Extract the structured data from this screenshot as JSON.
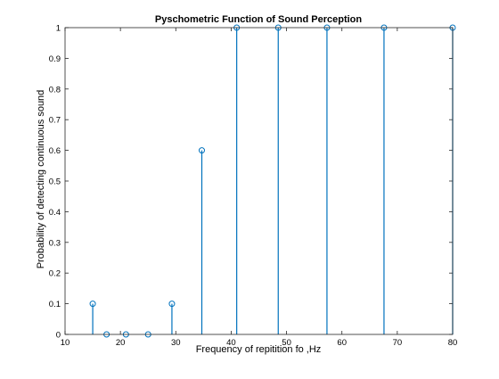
{
  "chart_data": {
    "type": "stem",
    "title": "Pyschometric Function of Sound Perception",
    "xlabel": "Frequency of repitition fo ,Hz",
    "ylabel": "Probability of detecting continuous sound",
    "xlim": [
      10,
      80
    ],
    "ylim": [
      0,
      1
    ],
    "xticks": [
      10,
      20,
      30,
      40,
      50,
      60,
      70,
      80
    ],
    "yticks": [
      0,
      0.1,
      0.2,
      0.3,
      0.4,
      0.5,
      0.6,
      0.7,
      0.8,
      0.9,
      1
    ],
    "xtick_labels": [
      "10",
      "20",
      "30",
      "40",
      "50",
      "60",
      "70",
      "80"
    ],
    "ytick_labels": [
      "0",
      "0.1",
      "0.2",
      "0.3",
      "0.4",
      "0.5",
      "0.6",
      "0.7",
      "0.8",
      "0.9",
      "1"
    ],
    "grid": false,
    "series": [
      {
        "x": [
          15,
          17.5,
          21,
          25,
          29.3,
          34.7,
          41,
          48.5,
          57.3,
          67.6,
          80
        ],
        "y": [
          0.1,
          0,
          0,
          0,
          0.1,
          0.6,
          1,
          1,
          1,
          1,
          1
        ],
        "color": "#0072BD",
        "marker": "circle"
      }
    ]
  }
}
